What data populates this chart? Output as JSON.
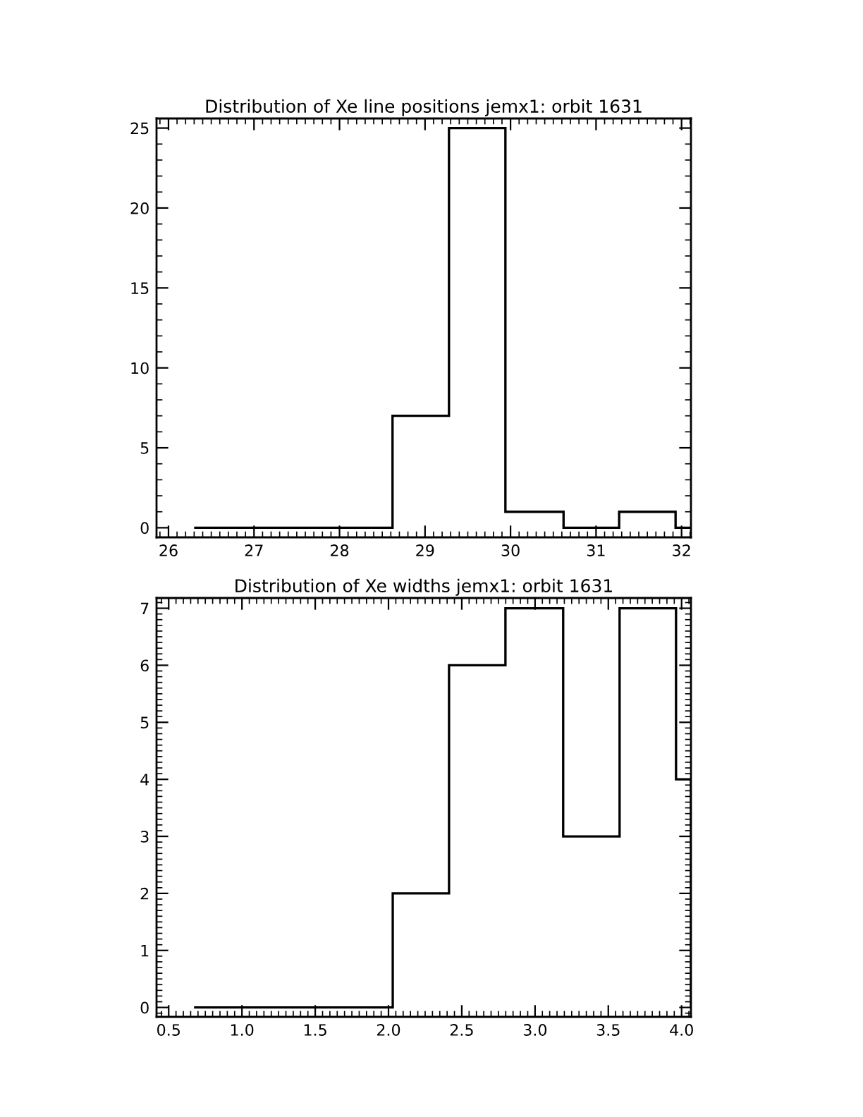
{
  "chart_data": [
    {
      "type": "histogram",
      "title": "Distribution of Xe line positions jemx1: orbit 1631",
      "bins": [
        26.3,
        28.62,
        29.28,
        29.94,
        30.62,
        31.27,
        31.93,
        32.11
      ],
      "values": [
        0,
        7,
        25,
        1,
        0,
        1,
        0
      ],
      "color": "#000000",
      "xlim": [
        25.86,
        32.11
      ],
      "xticks": [
        26,
        27,
        28,
        29,
        30,
        31,
        32
      ],
      "ylim": [
        -0.6,
        25.6
      ],
      "yticks": [
        0,
        5,
        10,
        15,
        20,
        25
      ],
      "grid": false,
      "legend": false
    },
    {
      "type": "histogram",
      "title": "Distribution of Xe widths jemx1: orbit 1631",
      "bins": [
        0.673,
        2.029,
        2.413,
        2.798,
        3.192,
        3.577,
        3.962,
        4.064
      ],
      "values": [
        0,
        2,
        6,
        7,
        3,
        7,
        4
      ],
      "color": "#000000",
      "xlim": [
        0.417,
        4.064
      ],
      "xticks": [
        {
          "value": 0.5,
          "label": "0.5"
        },
        {
          "value": 1.0,
          "label": "1.0"
        },
        {
          "value": 1.5,
          "label": "1.5"
        },
        {
          "value": 2.0,
          "label": "2.0"
        },
        {
          "value": 2.5,
          "label": "2.5"
        },
        {
          "value": 3.0,
          "label": "3.0"
        },
        {
          "value": 3.5,
          "label": "3.5"
        },
        {
          "value": 4.0,
          "label": "4.0"
        }
      ],
      "ylim": [
        -0.165,
        7.18
      ],
      "yticks": [
        0,
        1,
        2,
        3,
        4,
        5,
        6,
        7
      ],
      "grid": false,
      "legend": false
    }
  ]
}
